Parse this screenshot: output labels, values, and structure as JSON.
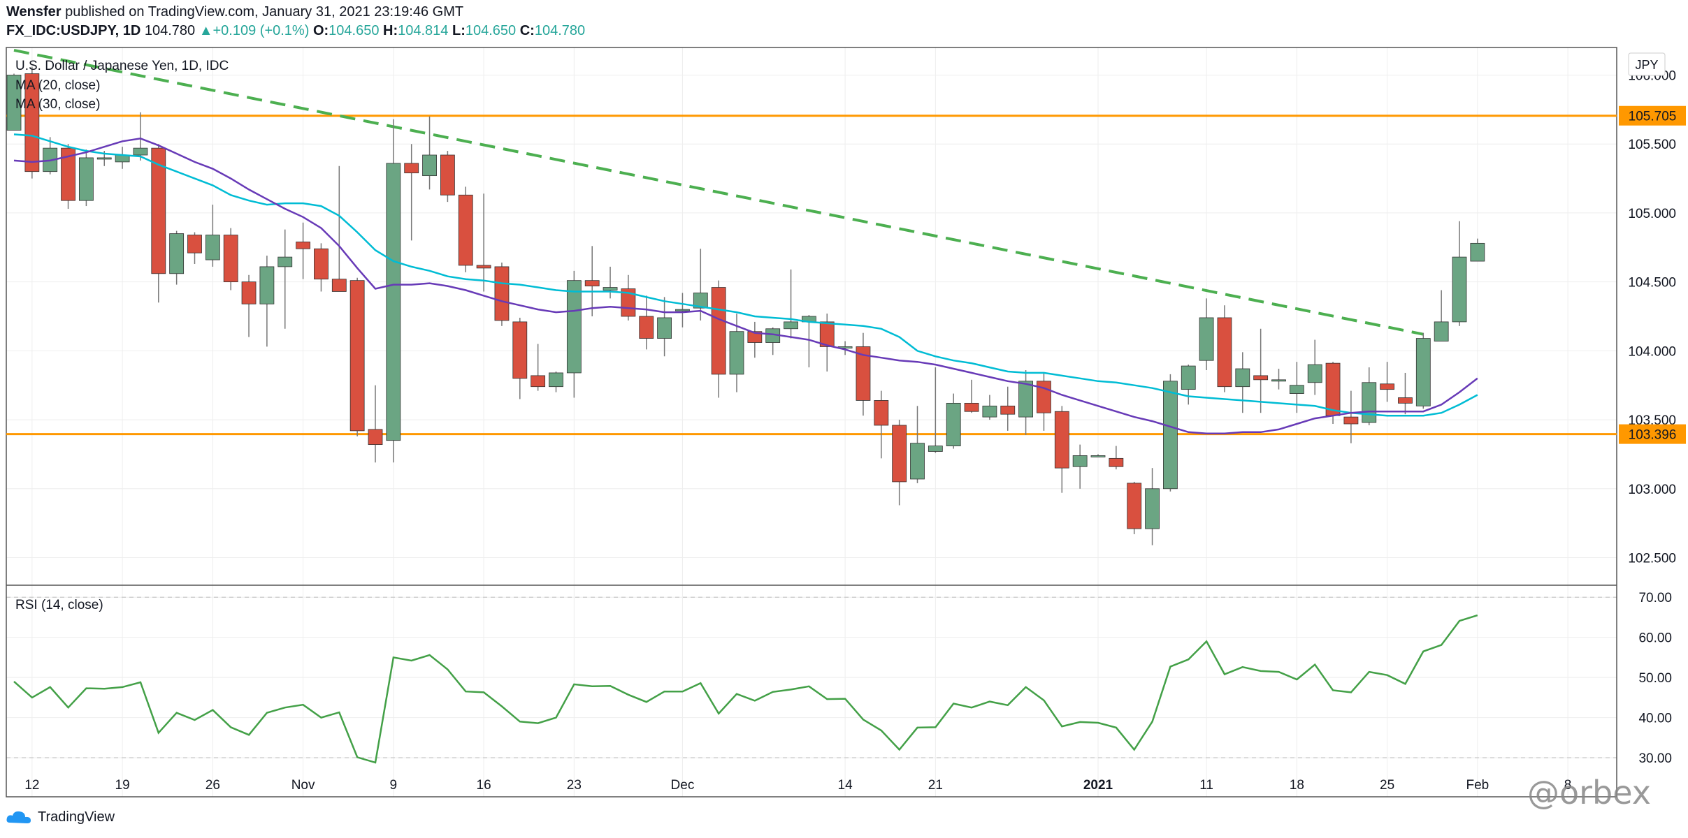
{
  "header": {
    "publisher": "Wensfer",
    "published_text": "published on TradingView.com, January 31, 2021 23:19:46 GMT",
    "symbol": "FX_IDC:USDJPY, 1D",
    "last": "104.780",
    "change": "+0.109 (+0.1%)",
    "o_label": "O:",
    "o": "104.650",
    "h_label": "H:",
    "h": "104.814",
    "l_label": "L:",
    "l": "104.650",
    "c_label": "C:",
    "c": "104.780"
  },
  "legend": {
    "title": "U.S. Dollar / Japanese Yen, 1D, IDC",
    "ma20": "MA (20, close)",
    "ma30": "MA (30, close)",
    "rsi": "RSI (14, close)"
  },
  "footer": {
    "brand": "TradingView",
    "watermark": "@orbex"
  },
  "colors": {
    "up": "#6ba583",
    "down": "#d9503f",
    "wick": "#777777",
    "ma20": "#00bcd4",
    "ma30": "#673ab7",
    "trend": "#4caf50",
    "level": "#ff9800",
    "rsi": "#43a047"
  },
  "chart_data": {
    "type": "candlestick",
    "currency_label": "JPY",
    "price_axis": {
      "ticks": [
        106.0,
        105.5,
        105.0,
        104.5,
        104.0,
        103.5,
        103.0,
        102.5
      ],
      "range": [
        102.3,
        106.2
      ]
    },
    "levels": [
      105.705,
      103.396
    ],
    "trendline": [
      {
        "i": 0,
        "v": 106.18
      },
      {
        "i": 78,
        "v": 104.12
      }
    ],
    "x_ticks": [
      {
        "i": 1,
        "label": "12"
      },
      {
        "i": 6,
        "label": "19"
      },
      {
        "i": 11,
        "label": "26"
      },
      {
        "i": 16,
        "label": "Nov"
      },
      {
        "i": 21,
        "label": "9"
      },
      {
        "i": 26,
        "label": "16"
      },
      {
        "i": 31,
        "label": "23"
      },
      {
        "i": 37,
        "label": "Dec"
      },
      {
        "i": 46,
        "label": "14"
      },
      {
        "i": 51,
        "label": "21"
      },
      {
        "i": 60,
        "label": "2021"
      },
      {
        "i": 66,
        "label": "11"
      },
      {
        "i": 71,
        "label": "18"
      },
      {
        "i": 76,
        "label": "25"
      },
      {
        "i": 81,
        "label": "Feb"
      },
      {
        "i": 86,
        "label": "8"
      }
    ],
    "candles": [
      [
        105.6,
        106.01,
        105.6,
        106.0
      ],
      [
        106.01,
        106.06,
        105.25,
        105.3
      ],
      [
        105.3,
        105.55,
        105.28,
        105.47
      ],
      [
        105.47,
        105.5,
        105.03,
        105.09
      ],
      [
        105.09,
        105.46,
        105.05,
        105.4
      ],
      [
        105.4,
        105.45,
        105.34,
        105.4
      ],
      [
        105.37,
        105.48,
        105.32,
        105.42
      ],
      [
        105.42,
        105.73,
        105.38,
        105.47
      ],
      [
        105.47,
        105.5,
        104.35,
        104.56
      ],
      [
        104.56,
        104.87,
        104.48,
        104.85
      ],
      [
        104.84,
        104.86,
        104.63,
        104.71
      ],
      [
        104.66,
        105.06,
        104.61,
        104.84
      ],
      [
        104.84,
        104.89,
        104.44,
        104.5
      ],
      [
        104.5,
        104.55,
        104.1,
        104.34
      ],
      [
        104.34,
        104.69,
        104.03,
        104.61
      ],
      [
        104.61,
        104.88,
        104.16,
        104.68
      ],
      [
        104.79,
        104.93,
        104.52,
        104.74
      ],
      [
        104.74,
        104.78,
        104.43,
        104.52
      ],
      [
        104.52,
        105.34,
        104.46,
        104.43
      ],
      [
        104.51,
        104.53,
        103.38,
        103.42
      ],
      [
        103.43,
        103.75,
        103.19,
        103.32
      ],
      [
        103.35,
        105.68,
        103.19,
        105.36
      ],
      [
        105.36,
        105.5,
        104.8,
        105.29
      ],
      [
        105.27,
        105.7,
        105.17,
        105.42
      ],
      [
        105.42,
        105.45,
        105.08,
        105.13
      ],
      [
        105.13,
        105.19,
        104.57,
        104.62
      ],
      [
        104.62,
        105.14,
        104.43,
        104.6
      ],
      [
        104.61,
        104.64,
        104.18,
        104.22
      ],
      [
        104.21,
        104.24,
        103.65,
        103.8
      ],
      [
        103.82,
        104.05,
        103.71,
        103.74
      ],
      [
        103.74,
        103.85,
        103.7,
        103.84
      ],
      [
        103.84,
        104.58,
        103.66,
        104.51
      ],
      [
        104.51,
        104.76,
        104.25,
        104.47
      ],
      [
        104.44,
        104.61,
        104.38,
        104.46
      ],
      [
        104.45,
        104.55,
        104.22,
        104.25
      ],
      [
        104.25,
        104.4,
        104.01,
        104.09
      ],
      [
        104.09,
        104.39,
        103.96,
        104.24
      ],
      [
        104.3,
        104.42,
        104.17,
        104.3
      ],
      [
        104.31,
        104.74,
        104.22,
        104.42
      ],
      [
        104.46,
        104.51,
        103.66,
        103.83
      ],
      [
        103.83,
        104.27,
        103.7,
        104.14
      ],
      [
        104.14,
        104.21,
        103.95,
        104.06
      ],
      [
        104.06,
        104.17,
        103.97,
        104.16
      ],
      [
        104.16,
        104.59,
        104.09,
        104.21
      ],
      [
        104.21,
        104.26,
        103.88,
        104.25
      ],
      [
        104.21,
        104.27,
        103.85,
        104.03
      ],
      [
        104.03,
        104.07,
        103.97,
        104.03
      ],
      [
        104.03,
        104.13,
        103.53,
        103.64
      ],
      [
        103.64,
        103.71,
        103.22,
        103.46
      ],
      [
        103.46,
        103.5,
        102.88,
        103.05
      ],
      [
        103.07,
        103.6,
        103.04,
        103.33
      ],
      [
        103.27,
        103.88,
        103.26,
        103.31
      ],
      [
        103.31,
        103.69,
        103.29,
        103.62
      ],
      [
        103.62,
        103.79,
        103.55,
        103.56
      ],
      [
        103.52,
        103.68,
        103.5,
        103.6
      ],
      [
        103.6,
        103.74,
        103.42,
        103.54
      ],
      [
        103.52,
        103.86,
        103.39,
        103.78
      ],
      [
        103.78,
        103.84,
        103.42,
        103.55
      ],
      [
        103.56,
        103.6,
        102.97,
        103.15
      ],
      [
        103.16,
        103.32,
        103.0,
        103.24
      ],
      [
        103.24,
        103.25,
        103.23,
        103.24
      ],
      [
        103.22,
        103.31,
        103.14,
        103.16
      ],
      [
        103.04,
        103.05,
        102.67,
        102.71
      ],
      [
        102.71,
        103.15,
        102.59,
        103.0
      ],
      [
        103.0,
        103.83,
        102.98,
        103.78
      ],
      [
        103.72,
        103.9,
        103.61,
        103.89
      ],
      [
        103.93,
        104.38,
        103.86,
        104.24
      ],
      [
        104.24,
        104.33,
        103.7,
        103.74
      ],
      [
        103.74,
        103.99,
        103.55,
        103.87
      ],
      [
        103.82,
        104.16,
        103.55,
        103.79
      ],
      [
        103.79,
        103.87,
        103.72,
        103.79
      ],
      [
        103.69,
        103.92,
        103.55,
        103.75
      ],
      [
        103.77,
        104.08,
        103.68,
        103.9
      ],
      [
        103.91,
        103.92,
        103.47,
        103.53
      ],
      [
        103.52,
        103.71,
        103.33,
        103.47
      ],
      [
        103.48,
        103.88,
        103.46,
        103.77
      ],
      [
        103.76,
        103.92,
        103.63,
        103.72
      ],
      [
        103.66,
        103.84,
        103.54,
        103.62
      ],
      [
        103.6,
        104.13,
        103.58,
        104.09
      ],
      [
        104.07,
        104.44,
        104.07,
        104.21
      ],
      [
        104.21,
        104.94,
        104.18,
        104.68
      ],
      [
        104.65,
        104.814,
        104.65,
        104.78
      ]
    ],
    "ma20": [
      105.38,
      105.37,
      105.38,
      105.41,
      105.44,
      105.48,
      105.52,
      105.54,
      105.49,
      105.43,
      105.37,
      105.32,
      105.25,
      105.17,
      105.1,
      105.03,
      104.97,
      104.89,
      104.76,
      104.6,
      104.45,
      104.48,
      104.48,
      104.49,
      104.47,
      104.44,
      104.4,
      104.36,
      104.33,
      104.3,
      104.28,
      104.29,
      104.31,
      104.32,
      104.31,
      104.3,
      104.28,
      104.28,
      104.29,
      104.23,
      104.18,
      104.13,
      104.12,
      104.1,
      104.08,
      104.04,
      104.01,
      103.97,
      103.95,
      103.93,
      103.92,
      103.9,
      103.87,
      103.84,
      103.81,
      103.78,
      103.76,
      103.73,
      103.68,
      103.64,
      103.6,
      103.56,
      103.52,
      103.49,
      103.45,
      103.41,
      103.4,
      103.4,
      103.41,
      103.41,
      103.43,
      103.47,
      103.51,
      103.53,
      103.55,
      103.56,
      103.56,
      103.56,
      103.56,
      103.61,
      103.7,
      103.8
    ],
    "ma30": [
      105.57,
      105.56,
      105.52,
      105.48,
      105.45,
      105.43,
      105.42,
      105.41,
      105.35,
      105.3,
      105.25,
      105.2,
      105.13,
      105.09,
      105.06,
      105.07,
      105.07,
      105.05,
      104.98,
      104.86,
      104.73,
      104.65,
      104.61,
      104.58,
      104.54,
      104.52,
      104.51,
      104.49,
      104.48,
      104.46,
      104.44,
      104.43,
      104.43,
      104.43,
      104.42,
      104.39,
      104.36,
      104.34,
      104.32,
      104.3,
      104.28,
      104.25,
      104.24,
      104.23,
      104.21,
      104.2,
      104.19,
      104.18,
      104.16,
      104.1,
      104.0,
      103.96,
      103.93,
      103.91,
      103.88,
      103.85,
      103.84,
      103.84,
      103.82,
      103.8,
      103.78,
      103.77,
      103.75,
      103.73,
      103.7,
      103.67,
      103.66,
      103.65,
      103.64,
      103.63,
      103.62,
      103.61,
      103.6,
      103.57,
      103.55,
      103.54,
      103.53,
      103.53,
      103.53,
      103.55,
      103.61,
      103.68
    ],
    "rsi": {
      "ticks": [
        70,
        60,
        50,
        40,
        30
      ],
      "range": [
        26,
        73
      ],
      "values": [
        49.0,
        45.0,
        47.6,
        42.5,
        47.3,
        47.2,
        47.6,
        48.8,
        36.2,
        41.2,
        39.4,
        41.9,
        37.6,
        35.7,
        41.2,
        42.5,
        43.2,
        40.0,
        41.3,
        30.1,
        28.8,
        55.0,
        54.2,
        55.6,
        52.0,
        46.5,
        46.3,
        42.8,
        39.0,
        38.6,
        40.0,
        48.3,
        47.8,
        47.9,
        45.7,
        43.9,
        46.5,
        46.5,
        48.6,
        41.0,
        45.9,
        44.2,
        46.4,
        47.0,
        47.8,
        44.6,
        44.7,
        39.5,
        36.8,
        32.0,
        37.5,
        37.6,
        43.5,
        42.5,
        44.0,
        43.1,
        47.6,
        44.3,
        37.8,
        38.9,
        38.7,
        37.5,
        32.0,
        39.0,
        52.7,
        54.5,
        59.0,
        50.8,
        52.6,
        51.6,
        51.4,
        49.5,
        53.2,
        46.8,
        46.3,
        51.4,
        50.6,
        48.4,
        56.5,
        58.1,
        64.1,
        65.5
      ]
    }
  }
}
